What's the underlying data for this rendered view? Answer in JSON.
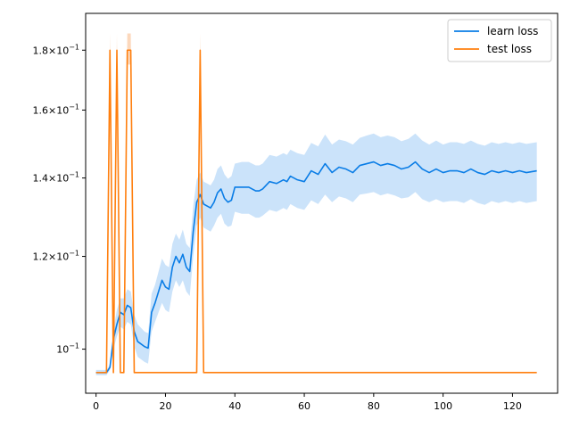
{
  "chart_data": {
    "type": "line",
    "title": "",
    "xlabel": "",
    "ylabel": "",
    "yscale": "log",
    "xlim": [
      -3,
      133
    ],
    "ylim": [
      0.0917,
      0.1935
    ],
    "grid": false,
    "legend_position": "top-right",
    "x_ticks": [
      0,
      20,
      40,
      60,
      80,
      100,
      120
    ],
    "x_tick_labels": [
      "0",
      "20",
      "40",
      "60",
      "80",
      "100",
      "120"
    ],
    "y_ticks": [
      {
        "value": 0.1,
        "mantissa": "",
        "base": "10",
        "exponent": "−1"
      },
      {
        "value": 0.12,
        "mantissa": "1.2",
        "base": "10",
        "exponent": "−1"
      },
      {
        "value": 0.14,
        "mantissa": "1.4",
        "base": "10",
        "exponent": "−1"
      },
      {
        "value": 0.16,
        "mantissa": "1.6",
        "base": "10",
        "exponent": "−1"
      },
      {
        "value": 0.18,
        "mantissa": "1.8",
        "base": "10",
        "exponent": "−1"
      }
    ],
    "series": [
      {
        "name": "learn loss",
        "color": "#1f77b4",
        "band_color": "#c8e1fa",
        "line_color": "#0a7de6",
        "x": [
          0,
          3,
          4,
          5,
          6,
          7,
          8,
          9,
          10,
          11,
          12,
          14,
          15,
          16,
          17,
          19,
          20,
          21,
          22,
          23,
          24,
          25,
          26,
          27,
          28,
          29,
          30,
          31,
          32,
          33,
          34,
          35,
          36,
          37,
          38,
          39,
          40,
          42,
          44,
          46,
          47,
          48,
          50,
          52,
          54,
          55,
          56,
          58,
          60,
          62,
          64,
          66,
          68,
          70,
          72,
          74,
          76,
          78,
          80,
          82,
          84,
          86,
          88,
          90,
          92,
          94,
          96,
          98,
          100,
          102,
          104,
          106,
          108,
          110,
          112,
          114,
          116,
          118,
          120,
          122,
          124,
          127
        ],
        "y": [
          0.0955,
          0.0955,
          0.0965,
          0.102,
          0.105,
          0.1075,
          0.107,
          0.109,
          0.1085,
          0.1035,
          0.1015,
          0.1005,
          0.1002,
          0.1075,
          0.1095,
          0.1145,
          0.113,
          0.1125,
          0.1175,
          0.12,
          0.1185,
          0.1205,
          0.1175,
          0.1165,
          0.126,
          0.1335,
          0.1355,
          0.133,
          0.1325,
          0.132,
          0.1335,
          0.136,
          0.137,
          0.1345,
          0.1335,
          0.134,
          0.1375,
          0.1375,
          0.1375,
          0.1365,
          0.1365,
          0.137,
          0.139,
          0.1385,
          0.1395,
          0.139,
          0.1405,
          0.1395,
          0.139,
          0.142,
          0.141,
          0.144,
          0.1415,
          0.143,
          0.1425,
          0.1415,
          0.1435,
          0.144,
          0.1445,
          0.1435,
          0.144,
          0.1435,
          0.1425,
          0.143,
          0.1445,
          0.1425,
          0.1415,
          0.1425,
          0.1415,
          0.142,
          0.142,
          0.1415,
          0.1425,
          0.1415,
          0.141,
          0.142,
          0.1415,
          0.142,
          0.1415,
          0.142,
          0.1415,
          0.142
        ],
        "band_low": [
          0.095,
          0.095,
          0.096,
          0.1,
          0.1025,
          0.1045,
          0.104,
          0.1055,
          0.105,
          0.1005,
          0.0985,
          0.0975,
          0.0972,
          0.1035,
          0.1055,
          0.1095,
          0.108,
          0.1075,
          0.112,
          0.1145,
          0.113,
          0.1145,
          0.112,
          0.111,
          0.12,
          0.1275,
          0.1295,
          0.127,
          0.1265,
          0.126,
          0.1275,
          0.1295,
          0.1305,
          0.128,
          0.1272,
          0.1275,
          0.131,
          0.1305,
          0.1305,
          0.1295,
          0.1295,
          0.13,
          0.1315,
          0.131,
          0.132,
          0.1315,
          0.133,
          0.132,
          0.1315,
          0.134,
          0.133,
          0.1355,
          0.1335,
          0.135,
          0.1345,
          0.1335,
          0.1355,
          0.1358,
          0.1362,
          0.1353,
          0.1358,
          0.1353,
          0.1345,
          0.1348,
          0.1362,
          0.1343,
          0.1335,
          0.1343,
          0.1335,
          0.1338,
          0.1338,
          0.1333,
          0.1343,
          0.1333,
          0.1328,
          0.1338,
          0.1333,
          0.1338,
          0.1333,
          0.1338,
          0.1333,
          0.1338
        ],
        "band_high": [
          0.096,
          0.096,
          0.097,
          0.104,
          0.108,
          0.1105,
          0.1105,
          0.1125,
          0.112,
          0.107,
          0.105,
          0.1035,
          0.1032,
          0.1115,
          0.1135,
          0.1195,
          0.118,
          0.1175,
          0.123,
          0.1255,
          0.124,
          0.1265,
          0.123,
          0.122,
          0.1325,
          0.1395,
          0.1415,
          0.139,
          0.1385,
          0.138,
          0.1395,
          0.1425,
          0.1435,
          0.141,
          0.1398,
          0.1405,
          0.144,
          0.1445,
          0.1445,
          0.1435,
          0.1435,
          0.144,
          0.1465,
          0.146,
          0.147,
          0.1465,
          0.148,
          0.147,
          0.1465,
          0.15,
          0.149,
          0.1525,
          0.1495,
          0.151,
          0.1505,
          0.1495,
          0.1515,
          0.1522,
          0.1528,
          0.1517,
          0.1522,
          0.1517,
          0.1505,
          0.1512,
          0.1528,
          0.1507,
          0.1495,
          0.1507,
          0.1495,
          0.1502,
          0.1502,
          0.1497,
          0.1507,
          0.1497,
          0.1492,
          0.1502,
          0.1497,
          0.1502,
          0.1497,
          0.1502,
          0.1497,
          0.1502
        ]
      },
      {
        "name": "test loss",
        "color": "#ff7f0e",
        "band_color": "#fcd6b8",
        "line_color": "#ff7f0e",
        "x": [
          0,
          3,
          4,
          5,
          6,
          7,
          8,
          9,
          10,
          11,
          12,
          28,
          29,
          30,
          31,
          32,
          127
        ],
        "y": [
          0.0955,
          0.0955,
          0.18,
          0.0955,
          0.18,
          0.0955,
          0.0955,
          0.18,
          0.18,
          0.0955,
          0.0955,
          0.0955,
          0.0955,
          0.18,
          0.0955,
          0.0955,
          0.0955
        ],
        "band_low": [
          0.0955,
          0.0955,
          0.175,
          0.0955,
          0.175,
          0.0955,
          0.0955,
          0.175,
          0.175,
          0.0955,
          0.0955,
          0.0955,
          0.0955,
          0.175,
          0.0955,
          0.0955,
          0.0955
        ],
        "band_high": [
          0.0955,
          0.0955,
          0.186,
          0.0955,
          0.186,
          0.0955,
          0.0955,
          0.186,
          0.186,
          0.0955,
          0.0955,
          0.0955,
          0.0955,
          0.186,
          0.0955,
          0.0955,
          0.0955
        ]
      }
    ]
  }
}
